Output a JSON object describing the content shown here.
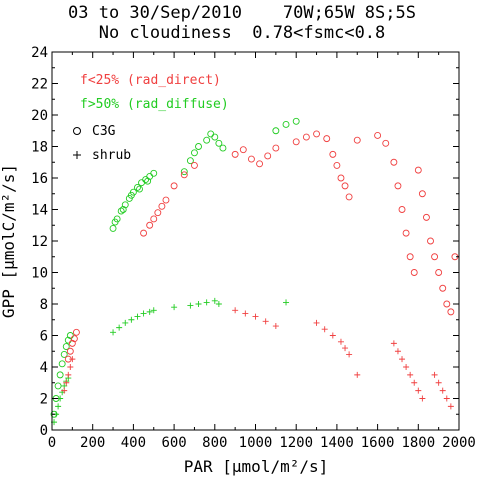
{
  "header": {
    "line1": "03 to 30/Sep/2010    70W;65W 8S;5S",
    "line2": "No cloudiness  0.78<fsmc<0.8"
  },
  "colors": {
    "direct": "#f04040",
    "diffuse": "#22cc22",
    "axis": "#000000"
  },
  "legend": {
    "direct": "f<25% (rad_direct)",
    "diffuse": "f>50% (rad_diffuse)",
    "c3g": "C3G",
    "shrub": "shrub"
  },
  "chart_data": {
    "type": "scatter",
    "xlabel": "PAR [μmol/m²/s]",
    "ylabel": "GPP [μmolC/m²/s]",
    "xlim": [
      0,
      2000
    ],
    "ylim": [
      0,
      24
    ],
    "xticks": [
      "0",
      "200",
      "400",
      "600",
      "800",
      "1000",
      "1200",
      "1400",
      "1600",
      "1800",
      "2000"
    ],
    "yticks": [
      "0",
      "2",
      "4",
      "6",
      "8",
      "10",
      "12",
      "14",
      "16",
      "18",
      "20",
      "22",
      "24"
    ],
    "markers": {
      "C3G": "open-circle",
      "shrub": "plus"
    },
    "series": [
      {
        "name": "f>50% (rad_diffuse) C3G",
        "color": "#22cc22",
        "marker": "open-circle",
        "x": [
          10,
          20,
          30,
          40,
          50,
          60,
          70,
          80,
          90,
          300,
          320,
          340,
          360,
          380,
          400,
          420,
          440,
          460,
          480,
          500,
          310,
          350,
          390,
          430,
          470,
          650,
          680,
          700,
          720,
          760,
          780,
          800,
          820,
          840,
          1100,
          1150,
          1200
        ],
        "y": [
          1.0,
          2.0,
          2.8,
          3.5,
          4.2,
          4.8,
          5.3,
          5.7,
          6.0,
          12.8,
          13.4,
          13.9,
          14.3,
          14.7,
          15.1,
          15.4,
          15.7,
          15.9,
          16.1,
          16.3,
          13.2,
          14.0,
          14.9,
          15.3,
          15.8,
          16.4,
          17.1,
          17.6,
          18.0,
          18.4,
          18.8,
          18.6,
          18.2,
          17.9,
          19.0,
          19.4,
          19.6
        ]
      },
      {
        "name": "f>50% (rad_diffuse) shrub",
        "color": "#22cc22",
        "marker": "plus",
        "x": [
          10,
          20,
          30,
          40,
          50,
          60,
          70,
          80,
          300,
          330,
          360,
          390,
          420,
          450,
          480,
          500,
          600,
          680,
          720,
          760,
          800,
          820,
          1150
        ],
        "y": [
          0.5,
          1.0,
          1.5,
          2.0,
          2.4,
          2.8,
          3.1,
          3.3,
          6.2,
          6.5,
          6.8,
          7.0,
          7.2,
          7.4,
          7.5,
          7.6,
          7.8,
          7.9,
          8.0,
          8.1,
          8.2,
          8.0,
          8.1
        ]
      },
      {
        "name": "f<25% (rad_direct) C3G",
        "color": "#f04040",
        "marker": "open-circle",
        "x": [
          80,
          90,
          100,
          110,
          120,
          450,
          480,
          500,
          520,
          540,
          560,
          600,
          650,
          700,
          900,
          940,
          980,
          1020,
          1060,
          1100,
          1200,
          1250,
          1300,
          1350,
          1380,
          1400,
          1420,
          1440,
          1460,
          1500,
          1600,
          1640,
          1680,
          1700,
          1720,
          1740,
          1760,
          1780,
          1800,
          1820,
          1840,
          1860,
          1880,
          1900,
          1920,
          1940,
          1960,
          1980
        ],
        "y": [
          4.5,
          5.0,
          5.5,
          5.8,
          6.2,
          12.5,
          13.0,
          13.4,
          13.8,
          14.2,
          14.6,
          15.5,
          16.2,
          16.8,
          17.5,
          17.8,
          17.2,
          16.9,
          17.4,
          17.9,
          18.3,
          18.6,
          18.8,
          18.5,
          17.5,
          16.8,
          16.0,
          15.5,
          14.8,
          18.4,
          18.7,
          18.2,
          17.0,
          15.5,
          14.0,
          12.5,
          11.0,
          10.0,
          16.5,
          15.0,
          13.5,
          12.0,
          11.0,
          10.0,
          9.0,
          8.0,
          7.5,
          11.0
        ]
      },
      {
        "name": "f<25% (rad_direct) shrub",
        "color": "#f04040",
        "marker": "plus",
        "x": [
          60,
          70,
          80,
          90,
          100,
          900,
          950,
          1000,
          1050,
          1100,
          1300,
          1340,
          1380,
          1420,
          1440,
          1460,
          1500,
          1680,
          1700,
          1720,
          1740,
          1760,
          1780,
          1800,
          1820,
          1880,
          1900,
          1920,
          1940,
          1960
        ],
        "y": [
          2.5,
          3.0,
          3.5,
          4.0,
          4.5,
          7.6,
          7.4,
          7.2,
          6.9,
          6.6,
          6.8,
          6.4,
          6.0,
          5.6,
          5.2,
          4.8,
          3.5,
          5.5,
          5.0,
          4.5,
          4.0,
          3.5,
          3.0,
          2.5,
          2.0,
          3.5,
          3.0,
          2.5,
          2.0,
          1.5
        ]
      }
    ]
  }
}
